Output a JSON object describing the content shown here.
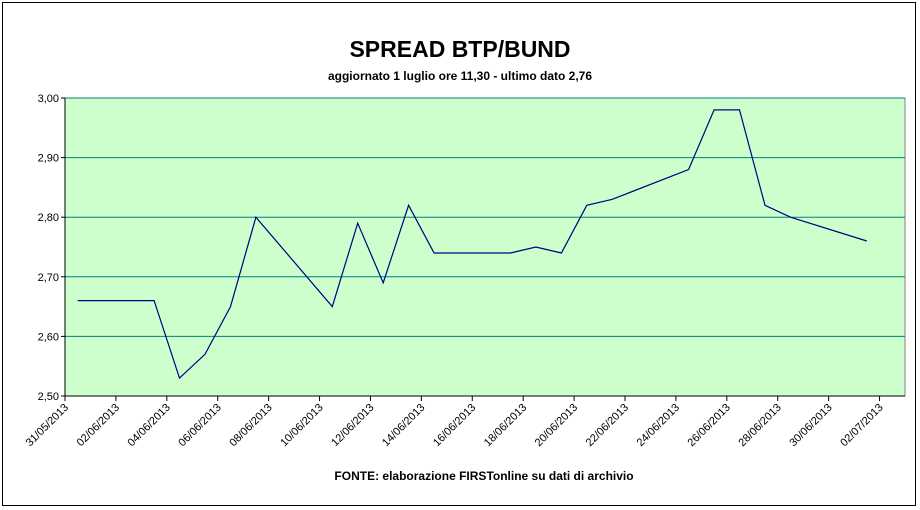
{
  "chart_data": {
    "type": "line",
    "title": "SPREAD BTP/BUND",
    "subtitle": "aggiornato 1 luglio ore 11,30 - ultimo dato 2,76",
    "source": "FONTE: elaborazione FIRSTonline su dati di archivio",
    "x": [
      "31/05/2013",
      "03/06/2013",
      "04/06/2013",
      "05/06/2013",
      "06/06/2013",
      "07/06/2013",
      "10/06/2013",
      "11/06/2013",
      "12/06/2013",
      "13/06/2013",
      "14/06/2013",
      "17/06/2013",
      "18/06/2013",
      "19/06/2013",
      "20/06/2013",
      "21/06/2013",
      "24/06/2013",
      "25/06/2013",
      "26/06/2013",
      "27/06/2013",
      "28/06/2013",
      "01/07/2013"
    ],
    "series": [
      {
        "color": "#000080",
        "values": [
          2.66,
          2.66,
          2.53,
          2.57,
          2.65,
          2.8,
          2.65,
          2.79,
          2.69,
          2.82,
          2.74,
          2.74,
          2.75,
          2.74,
          2.82,
          2.83,
          2.88,
          2.98,
          2.98,
          2.82,
          2.8,
          2.76
        ]
      }
    ],
    "xlim": [
      "31/05/2013",
      "03/07/2013"
    ],
    "xticks": [
      "31/05/2013",
      "02/06/2013",
      "04/06/2013",
      "06/06/2013",
      "08/06/2013",
      "10/06/2013",
      "12/06/2013",
      "14/06/2013",
      "16/06/2013",
      "18/06/2013",
      "20/06/2013",
      "22/06/2013",
      "24/06/2013",
      "26/06/2013",
      "28/06/2013",
      "30/06/2013",
      "02/07/2013"
    ],
    "ylim": [
      2.5,
      3.0
    ],
    "yticks": [
      {
        "value": 2.5,
        "label": "2,50"
      },
      {
        "value": 2.6,
        "label": "2,60"
      },
      {
        "value": 2.7,
        "label": "2,70"
      },
      {
        "value": 2.8,
        "label": "2,80"
      },
      {
        "value": 2.9,
        "label": "2,90"
      },
      {
        "value": 3.0,
        "label": "3,00"
      }
    ],
    "grid": true,
    "plot_background": "#ccffcc",
    "grid_color": "#008080"
  }
}
